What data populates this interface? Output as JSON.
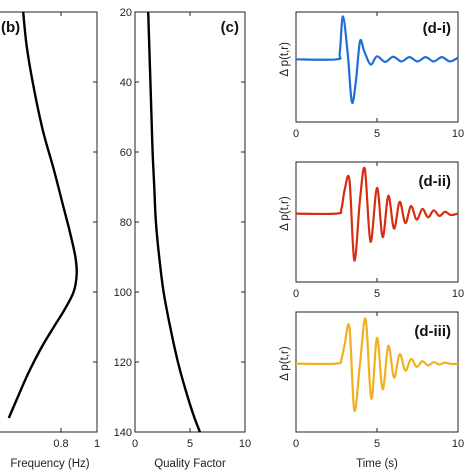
{
  "chart_data": [
    {
      "panel": "(b)",
      "type": "line",
      "xlabel": "Frequency (Hz)",
      "ylabel": "",
      "xlim": [
        0.45,
        1.0
      ],
      "ylim": [
        20,
        140
      ],
      "y_reversed": true,
      "x_ticks": [
        0.8,
        1
      ],
      "x_tick_labels": [
        "0.8",
        "1"
      ],
      "y_ticks": [],
      "y_tick_labels": [],
      "color": "#000000",
      "series": [
        {
          "x": [
            0.59,
            0.61,
            0.65,
            0.7,
            0.76,
            0.81,
            0.85,
            0.88,
            0.887,
            0.87,
            0.82,
            0.76,
            0.69,
            0.62,
            0.56,
            0.51
          ],
          "y": [
            20,
            30,
            42,
            54,
            65,
            75,
            83,
            90,
            95,
            100,
            105,
            110,
            116,
            123,
            130,
            136
          ]
        }
      ]
    },
    {
      "panel": "(c)",
      "type": "line",
      "xlabel": "Quality Factor",
      "ylabel": "",
      "xlim": [
        0,
        10
      ],
      "ylim": [
        20,
        140
      ],
      "y_reversed": true,
      "x_ticks": [
        0,
        5,
        10
      ],
      "x_tick_labels": [
        "0",
        "5",
        "10"
      ],
      "y_ticks": [
        20,
        40,
        60,
        80,
        100,
        120,
        140
      ],
      "y_tick_labels": [
        "20",
        "40",
        "60",
        "80",
        "100",
        "120",
        "140"
      ],
      "color": "#000000",
      "series": [
        {
          "x": [
            1.2,
            1.3,
            1.4,
            1.5,
            1.6,
            1.75,
            1.9,
            2.2,
            2.6,
            3.2,
            3.9,
            4.6,
            5.3,
            5.9
          ],
          "y": [
            20,
            30,
            40,
            50,
            60,
            70,
            80,
            90,
            100,
            110,
            120,
            128,
            135,
            140
          ]
        }
      ]
    },
    {
      "panel": "(d-i)",
      "type": "line",
      "xlabel": "",
      "ylabel": "Δ p(t,r)",
      "xlim": [
        0,
        10
      ],
      "x_ticks": [
        0,
        5,
        10
      ],
      "x_tick_labels": [
        "0",
        "5",
        "10"
      ],
      "color": "#1f6fd6",
      "series": [
        {
          "x": [
            0,
            2.5,
            2.7,
            2.9,
            3.2,
            3.45,
            3.7,
            3.95,
            4.2,
            4.6,
            5,
            5.5,
            6,
            6.5,
            7,
            7.5,
            8,
            8.5,
            9,
            9.5,
            10
          ],
          "y": [
            0,
            0,
            0.15,
            1.0,
            0.1,
            -1.0,
            -0.5,
            0.42,
            0.2,
            -0.12,
            0.07,
            -0.06,
            0.06,
            -0.05,
            0.05,
            -0.05,
            0.05,
            -0.05,
            0.05,
            -0.05,
            0.04
          ]
        }
      ]
    },
    {
      "panel": "(d-ii)",
      "type": "line",
      "xlabel": "",
      "ylabel": "Δ p(t,r)",
      "xlim": [
        0,
        10
      ],
      "x_ticks": [
        0,
        5,
        10
      ],
      "x_tick_labels": [
        "0",
        "5",
        "10"
      ],
      "color": "#d62e10",
      "series": [
        {
          "x": [
            0,
            2.5,
            2.8,
            3.0,
            3.3,
            3.6,
            3.95,
            4.25,
            4.6,
            5.0,
            5.35,
            5.7,
            6.05,
            6.4,
            6.75,
            7.1,
            7.45,
            7.8,
            8.15,
            8.5,
            8.85,
            9.2,
            9.55,
            10
          ],
          "y": [
            0,
            0,
            0.1,
            0.5,
            0.72,
            -1.0,
            0.3,
            0.95,
            -0.6,
            0.55,
            -0.5,
            0.38,
            -0.32,
            0.25,
            -0.2,
            0.16,
            -0.13,
            0.1,
            -0.08,
            0.07,
            -0.05,
            0.04,
            -0.03,
            0
          ]
        }
      ]
    },
    {
      "panel": "(d-iii)",
      "type": "line",
      "xlabel": "Time (s)",
      "ylabel": "Δ p(t,r)",
      "xlim": [
        0,
        10
      ],
      "x_ticks": [
        0,
        5,
        10
      ],
      "x_tick_labels": [
        "0",
        "5",
        "10"
      ],
      "color": "#f0b020",
      "series": [
        {
          "x": [
            0,
            2.5,
            2.8,
            3.0,
            3.3,
            3.6,
            3.95,
            4.3,
            4.65,
            5.0,
            5.35,
            5.7,
            6.05,
            6.4,
            6.75,
            7.1,
            7.45,
            7.8,
            8.15,
            8.5,
            8.85,
            9.2,
            9.6,
            10
          ],
          "y": [
            0,
            0,
            0.1,
            0.4,
            0.78,
            -1.0,
            0.0,
            0.95,
            -0.75,
            0.55,
            -0.55,
            0.38,
            -0.3,
            0.2,
            -0.15,
            0.1,
            -0.07,
            0.05,
            -0.04,
            0.03,
            -0.02,
            0.02,
            -0.01,
            0
          ]
        }
      ]
    }
  ]
}
